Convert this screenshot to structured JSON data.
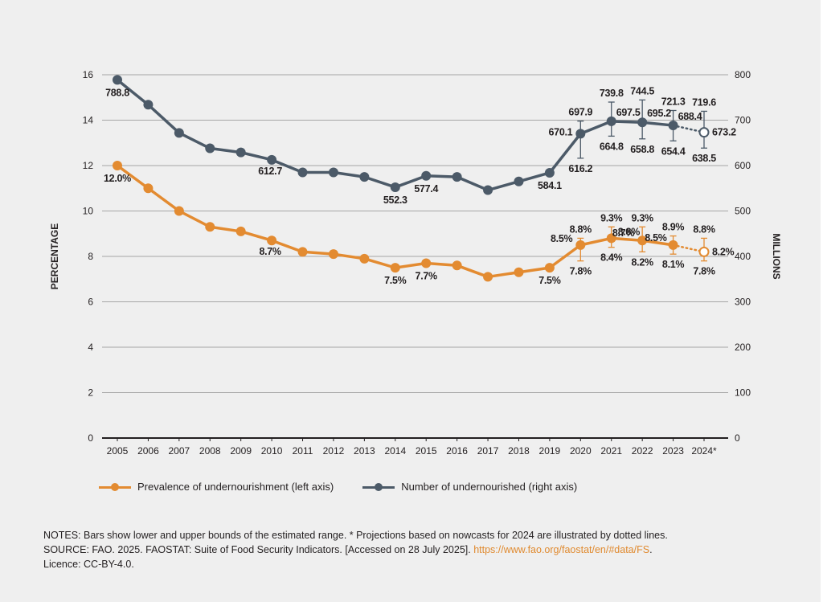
{
  "colors": {
    "background": "#efefef",
    "prevalence": "#e38b31",
    "number": "#4c5a68",
    "grid": "#a6a6a6",
    "axis": "#231f20",
    "link": "#e08a2f"
  },
  "chart_data": {
    "type": "line",
    "title": "",
    "categories": [
      "2005",
      "2006",
      "2007",
      "2008",
      "2009",
      "2010",
      "2011",
      "2012",
      "2013",
      "2014",
      "2015",
      "2016",
      "2017",
      "2018",
      "2019",
      "2020",
      "2021",
      "2022",
      "2023",
      "2024*"
    ],
    "left_axis": {
      "label": "PERCENTAGE",
      "ylim": [
        0,
        16
      ],
      "ticks": [
        "0",
        "2",
        "4",
        "6",
        "8",
        "10",
        "12",
        "14",
        "16"
      ]
    },
    "right_axis": {
      "label": "MILLIONS",
      "ylim": [
        0,
        800
      ],
      "ticks": [
        "0",
        "100",
        "200",
        "300",
        "400",
        "500",
        "600",
        "700",
        "800"
      ]
    },
    "grid": true,
    "legend_position": "bottom",
    "series": [
      {
        "name": "Prevalence of undernourishment (left axis)",
        "axis": "left",
        "values": [
          12.0,
          11.0,
          10.0,
          9.3,
          9.1,
          8.7,
          8.2,
          8.1,
          7.9,
          7.5,
          7.7,
          7.6,
          7.1,
          7.3,
          7.5,
          8.5,
          8.8,
          8.7,
          8.5,
          8.2
        ],
        "labels": {
          "0": "12.0%",
          "5": "8.7%",
          "9": "7.5%",
          "10": "7.7%",
          "14": "7.5%",
          "15": "8.5%",
          "16": "8.8%",
          "17": "8.7%",
          "18": "8.5%",
          "19": "8.2%"
        },
        "ranges": {
          "15": {
            "low": 7.8,
            "high": 8.8,
            "low_label": "7.8%",
            "high_label": "8.8%"
          },
          "16": {
            "low": 8.4,
            "high": 9.3,
            "low_label": "8.4%",
            "high_label": "9.3%"
          },
          "17": {
            "low": 8.2,
            "high": 9.3,
            "low_label": "8.2%",
            "high_label": "9.3%"
          },
          "18": {
            "low": 8.1,
            "high": 8.9,
            "low_label": "8.1%",
            "high_label": "8.9%"
          },
          "19": {
            "low": 7.8,
            "high": 8.8,
            "low_label": "7.8%",
            "high_label": "8.8%"
          }
        },
        "projected_index": 19
      },
      {
        "name": "Number of undernourished (right axis)",
        "axis": "right",
        "values": [
          788.8,
          734,
          672,
          638,
          629,
          612.7,
          585,
          585,
          575,
          552.3,
          577.4,
          575,
          546,
          565,
          584.1,
          670.1,
          697.5,
          695.2,
          688.4,
          673.2
        ],
        "labels": {
          "0": "788.8",
          "5": "612.7",
          "9": "552.3",
          "10": "577.4",
          "14": "584.1",
          "15": "670.1",
          "16": "697.5",
          "17": "695.2",
          "18": "688.4",
          "19": "673.2"
        },
        "ranges": {
          "15": {
            "low": 616.2,
            "high": 697.9,
            "low_label": "616.2",
            "high_label": "697.9"
          },
          "16": {
            "low": 664.8,
            "high": 739.8,
            "low_label": "664.8",
            "high_label": "739.8"
          },
          "17": {
            "low": 658.8,
            "high": 744.5,
            "low_label": "658.8",
            "high_label": "744.5"
          },
          "18": {
            "low": 654.4,
            "high": 721.3,
            "low_label": "654.4",
            "high_label": "721.3"
          },
          "19": {
            "low": 638.5,
            "high": 719.6,
            "low_label": "638.5",
            "high_label": "719.6"
          }
        },
        "projected_index": 19
      }
    ]
  },
  "legend": {
    "items": [
      {
        "label": "Prevalence of undernourishment (left axis)"
      },
      {
        "label": "Number of undernourished (right axis)"
      }
    ]
  },
  "notes": {
    "notes_line": "NOTES: Bars show lower and upper bounds of the estimated range. * Projections based on nowcasts for 2024 are illustrated by dotted lines.",
    "source_prefix": "SOURCE: FAO. 2025. FAOSTAT: Suite of Food Security Indicators. [Accessed on 28 July 2025]. ",
    "source_link": "https://www.fao.org/faostat/en/#data/FS",
    "source_suffix": ".",
    "licence": "Licence: CC-BY-4.0."
  }
}
